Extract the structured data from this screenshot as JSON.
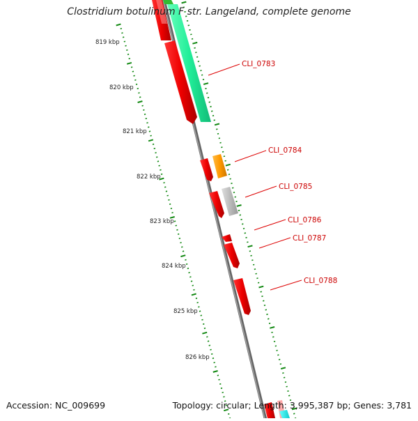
{
  "header": {
    "title": "Clostridium botulinum F str. Langeland, complete genome"
  },
  "footer": {
    "accession": "Accession: NC_009699",
    "topology": "Topology: circular; Length: 3,995,387 bp; Genes: 3,781"
  },
  "ruler": {
    "labels": [
      "819 kbp",
      "820 kbp",
      "821 kbp",
      "822 kbp",
      "823 kbp",
      "824 kbp",
      "825 kbp",
      "826 kbp"
    ]
  },
  "genes": [
    {
      "id": "CLI_0783",
      "label": "CLI_0783",
      "strand": "forward",
      "color": "#33ee99"
    },
    {
      "id": "CLI_0784",
      "label": "CLI_0784",
      "strand": "forward",
      "color": "#ff9900"
    },
    {
      "id": "CLI_0785",
      "label": "CLI_0785",
      "strand": "forward",
      "color": "#bbbbbb"
    },
    {
      "id": "CLI_0786",
      "label": "CLI_0786",
      "strand": "reverse",
      "color": "#ee1111"
    },
    {
      "id": "CLI_0787",
      "label": "CLI_0787",
      "strand": "reverse",
      "color": "#ee1111"
    },
    {
      "id": "CLI_0788",
      "label": "CLI_0788",
      "strand": "reverse",
      "color": "#ee1111"
    }
  ],
  "colors": {
    "backbone": "#888888",
    "tick": "#118811",
    "label": "#cc0000",
    "reverse_gene": "#ee1111",
    "label_line": "#dd0000"
  }
}
